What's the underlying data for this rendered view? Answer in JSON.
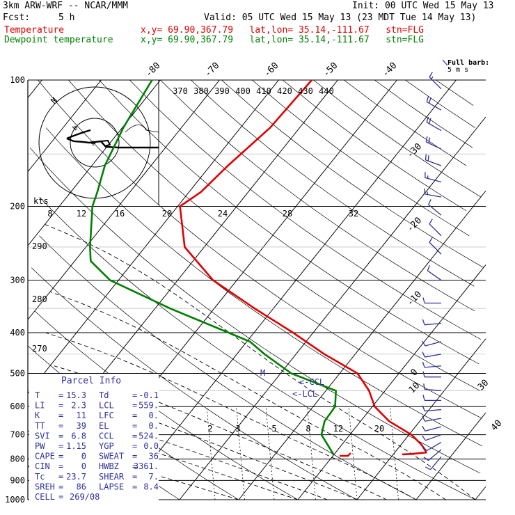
{
  "header": {
    "model": "3km ARW-WRF -- NCAR/MMM",
    "init": "Init: 00 UTC Wed 15 May 13",
    "fcst_label": "Fcst:",
    "fcst_value": "5 h",
    "valid": "Valid: 05 UTC Wed 15 May 13 (23 MDT Tue 14 May 13)",
    "temp_label": "Temperature",
    "temp_info": "x,y= 69.90,367.79   lat,lon= 35.14,-111.67   stn=FLG",
    "dew_label": "Dewpoint temperature",
    "dew_info": "x,y= 69.90,367.79   lat,lon= 35.14,-111.67   stn=FLG",
    "barb_title": "Full barb:",
    "barb_unit": "5 m s"
  },
  "colors": {
    "temperature": "#e00000",
    "dewpoint": "#008000",
    "wind": "#3030a0",
    "parcel": "#3030a0",
    "axes": "#000000"
  },
  "chart_data": {
    "type": "line",
    "title": "",
    "pressure_axis": {
      "label": "",
      "ticks": [
        100,
        200,
        300,
        400,
        500,
        600,
        700,
        800,
        900,
        1000
      ]
    },
    "temperature_axis": {
      "ticks": [
        -80,
        -70,
        -60,
        -50,
        -40,
        -30,
        -20,
        -10,
        0,
        10,
        30,
        40
      ]
    },
    "mixing_ratio_labels": [
      "2",
      "3",
      "5",
      "8",
      "12",
      "20"
    ],
    "theta_e_labels": [
      "370",
      "380",
      "390",
      "400",
      "410",
      "420",
      "430",
      "440"
    ],
    "hodograph_speed_labels": [
      "8",
      "12",
      "16",
      "20",
      "24",
      "28",
      "32"
    ],
    "hodograph_unit": "kts",
    "hodograph_left_labels": [
      "290",
      "280",
      "270"
    ],
    "series": [
      {
        "name": "Temperature",
        "pressure": [
          100,
          130,
          160,
          185,
          200,
          250,
          300,
          350,
          400,
          450,
          500,
          550,
          600,
          650,
          700,
          740,
          760,
          772,
          778,
          780
        ],
        "values": [
          -54.4,
          -55.0,
          -57.0,
          -58.0,
          -59.6,
          -53.3,
          -44.0,
          -33.2,
          -23.4,
          -15.2,
          -7.0,
          -2.7,
          0.4,
          4.8,
          10.4,
          13.5,
          14.7,
          15.3,
          13.0,
          11.5
        ]
      },
      {
        "name": "Dewpoint temperature",
        "pressure": [
          100,
          130,
          160,
          185,
          200,
          250,
          270,
          300,
          350,
          400,
          420,
          450,
          500,
          550,
          600,
          650,
          700,
          750,
          780
        ],
        "values": [
          -81.4,
          -79.8,
          -77.8,
          -75.5,
          -74.4,
          -69.3,
          -67.3,
          -61.4,
          -47.5,
          -34.3,
          -29.5,
          -25.3,
          -18.2,
          -8.3,
          -6.3,
          -6.1,
          -4.8,
          -1.8,
          -0.1
        ]
      }
    ],
    "parcel_markers": [
      "M",
      "<-CCL",
      "<-LCL"
    ]
  },
  "parcel_info": {
    "title": "Parcel Info",
    "rows": [
      [
        "T",
        "=",
        "15.3",
        "Td",
        "=",
        "-0.1"
      ],
      [
        "LI",
        "=",
        "2.3",
        "LCL",
        "=",
        "559."
      ],
      [
        "K",
        "=",
        "11",
        "LFC",
        "=",
        "0."
      ],
      [
        "TT",
        "=",
        "39",
        "EL",
        "=",
        "0."
      ],
      [
        "SVI",
        "=",
        "6.8",
        "CCL",
        "=",
        "524."
      ],
      [
        "PW",
        "=",
        "1.15",
        "YGP",
        "=",
        "0.0"
      ],
      [
        "CAPE",
        "=",
        "0",
        "SWEAT",
        "=",
        "36"
      ],
      [
        "CIN",
        "=",
        "0",
        "HWBZ",
        "=",
        "3361."
      ],
      [
        "Tc",
        "=",
        "23.7",
        "SHEAR",
        "=",
        "7."
      ],
      [
        "SREH",
        "=",
        "86",
        "LAPSE",
        "=",
        "8.4"
      ],
      [
        "CELL",
        "=",
        "269/08",
        "",
        "",
        ""
      ]
    ]
  },
  "winds": [
    {
      "p": 105,
      "dir": 315,
      "spd": 7
    },
    {
      "p": 118,
      "dir": 300,
      "spd": 10
    },
    {
      "p": 132,
      "dir": 300,
      "spd": 10
    },
    {
      "p": 146,
      "dir": 295,
      "spd": 10
    },
    {
      "p": 160,
      "dir": 290,
      "spd": 10
    },
    {
      "p": 175,
      "dir": 285,
      "spd": 7
    },
    {
      "p": 190,
      "dir": 280,
      "spd": 7
    },
    {
      "p": 210,
      "dir": 310,
      "spd": 5
    },
    {
      "p": 235,
      "dir": 315,
      "spd": 5
    },
    {
      "p": 260,
      "dir": 315,
      "spd": 5
    },
    {
      "p": 300,
      "dir": 305,
      "spd": 5
    },
    {
      "p": 340,
      "dir": 270,
      "spd": 5
    },
    {
      "p": 380,
      "dir": 265,
      "spd": 5
    },
    {
      "p": 420,
      "dir": 255,
      "spd": 5
    },
    {
      "p": 450,
      "dir": 260,
      "spd": 5
    },
    {
      "p": 480,
      "dir": 265,
      "spd": 5
    },
    {
      "p": 510,
      "dir": 270,
      "spd": 5
    },
    {
      "p": 550,
      "dir": 275,
      "spd": 5
    },
    {
      "p": 580,
      "dir": 270,
      "spd": 5
    },
    {
      "p": 610,
      "dir": 265,
      "spd": 5
    },
    {
      "p": 640,
      "dir": 260,
      "spd": 5
    },
    {
      "p": 670,
      "dir": 255,
      "spd": 5
    },
    {
      "p": 700,
      "dir": 250,
      "spd": 5
    },
    {
      "p": 730,
      "dir": 240,
      "spd": 5
    },
    {
      "p": 760,
      "dir": 230,
      "spd": 5
    },
    {
      "p": 790,
      "dir": 220,
      "spd": 5
    }
  ]
}
